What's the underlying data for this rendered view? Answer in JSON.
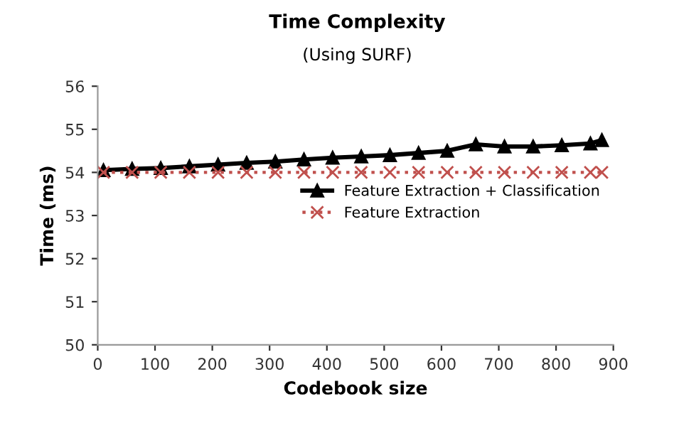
{
  "chart_data": {
    "type": "line",
    "title": "Time Complexity",
    "subtitle": "(Using SURF)",
    "xlabel": "Codebook size",
    "ylabel": "Time (ms)",
    "x": [
      10,
      60,
      110,
      160,
      210,
      260,
      310,
      360,
      410,
      460,
      510,
      560,
      610,
      660,
      710,
      760,
      810,
      860,
      880
    ],
    "series": [
      {
        "name": "Feature Extraction + Classification",
        "color": "#000000",
        "marker": "triangle",
        "line_style": "solid",
        "values": [
          54.05,
          54.08,
          54.1,
          54.14,
          54.18,
          54.22,
          54.25,
          54.3,
          54.34,
          54.37,
          54.4,
          54.45,
          54.5,
          54.65,
          54.6,
          54.6,
          54.63,
          54.67,
          54.75
        ]
      },
      {
        "name": "Feature Extraction",
        "color": "#c0504d",
        "marker": "cross",
        "line_style": "dotted",
        "values": [
          54.0,
          54.0,
          54.0,
          54.0,
          54.0,
          54.0,
          54.0,
          54.0,
          54.0,
          54.0,
          54.0,
          54.0,
          54.0,
          54.0,
          54.0,
          54.0,
          54.0,
          54.0,
          54.0
        ]
      }
    ],
    "xlim": [
      0,
      900
    ],
    "xticks": [
      0,
      100,
      200,
      300,
      400,
      500,
      600,
      700,
      800,
      900
    ],
    "ylim": [
      50,
      56
    ],
    "yticks": [
      50,
      51,
      52,
      53,
      54,
      55,
      56
    ],
    "grid": false,
    "legend": "right"
  }
}
